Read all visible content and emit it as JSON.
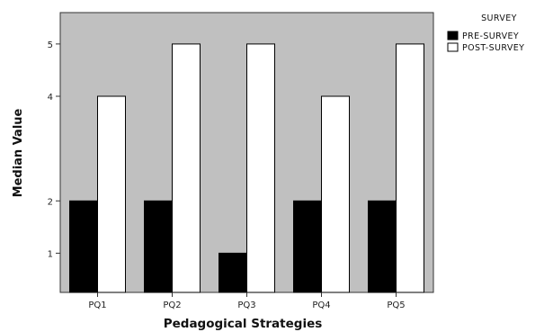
{
  "chart_data": {
    "type": "bar",
    "categories": [
      "PQ1",
      "PQ2",
      "PQ3",
      "PQ4",
      "PQ5"
    ],
    "series": [
      {
        "name": "PRE-SURVEY",
        "values": [
          2,
          2,
          1,
          2,
          2
        ],
        "color": "#000000"
      },
      {
        "name": "POST-SURVEY",
        "values": [
          4,
          5,
          5,
          4,
          5
        ],
        "color": "#ffffff"
      }
    ],
    "xlabel": "Pedagogical Strategies",
    "ylabel": "Median Value",
    "yticks": [
      "1",
      "2",
      "4",
      "5"
    ],
    "ylim": [
      0.25,
      5.6
    ],
    "legend": {
      "title": "SURVEY",
      "position": "top-right"
    },
    "grid": false,
    "plot_background": "#c0c0c0"
  }
}
